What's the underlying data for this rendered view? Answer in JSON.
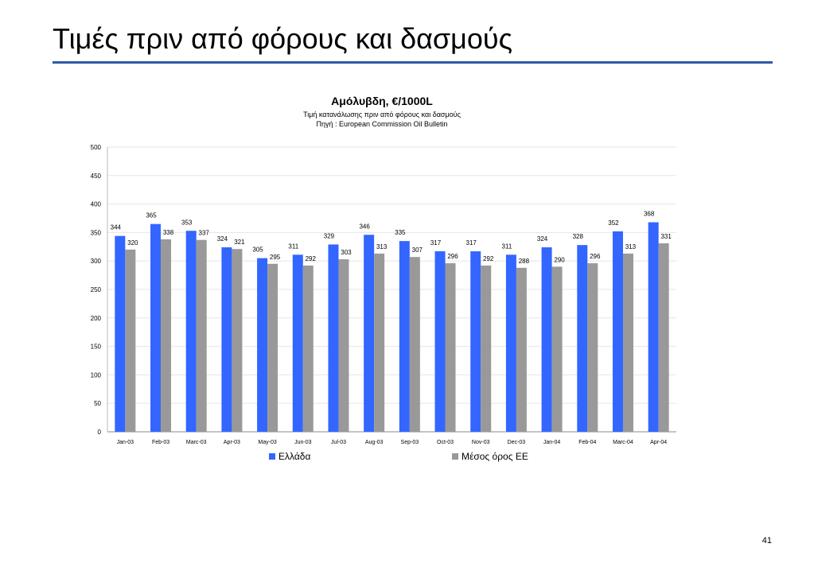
{
  "slide": {
    "title": "Τιμές πριν από φόρους και δασμούς",
    "page_number": "41"
  },
  "colors": {
    "series_greece": "#3366ff",
    "series_eu": "#999999",
    "rule": "#2f58a8"
  },
  "chart_data": {
    "type": "bar",
    "title": "Αμόλυβδη, €/1000L",
    "subtitle_lines": [
      "Τιμή κατανάλωσης πριν από φόρους και δασμούς",
      "Πηγή : European Commission Oil Bulletin"
    ],
    "xlabel": "",
    "ylabel": "",
    "ylim": [
      0,
      500
    ],
    "yticks": [
      0,
      50,
      100,
      150,
      200,
      250,
      300,
      350,
      400,
      450,
      500
    ],
    "grid": true,
    "legend_position": "bottom",
    "categories": [
      "Jan-03",
      "Feb-03",
      "Marc-03",
      "Apr-03",
      "May-03",
      "Jun-03",
      "Jul-03",
      "Aug-03",
      "Sep-03",
      "Oct-03",
      "Nov-03",
      "Dec-03",
      "Jan-04",
      "Feb-04",
      "Marc-04",
      "Apr-04"
    ],
    "series": [
      {
        "name": "Ελλάδα",
        "color": "#3366ff",
        "values": [
          344,
          365,
          353,
          324,
          305,
          311,
          329,
          346,
          335,
          317,
          317,
          311,
          324,
          328,
          352,
          368
        ]
      },
      {
        "name": "Μέσος όρος ΕΕ",
        "color": "#999999",
        "values": [
          320,
          338,
          337,
          321,
          295,
          292,
          303,
          313,
          307,
          296,
          292,
          288,
          290,
          296,
          313,
          331
        ]
      }
    ]
  }
}
